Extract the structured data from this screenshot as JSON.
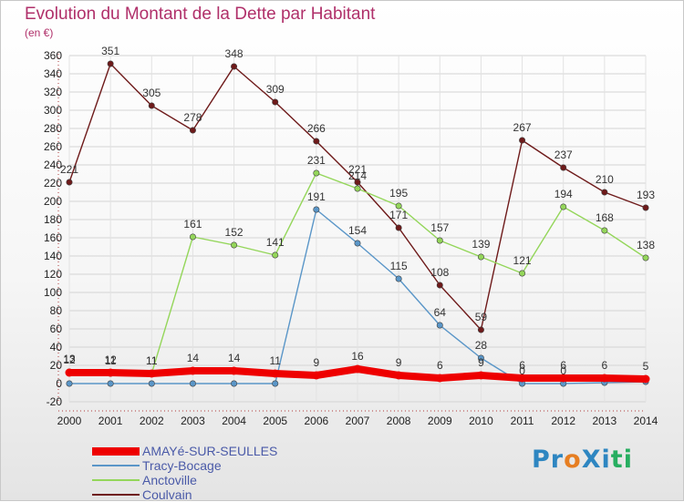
{
  "title": "Evolution du Montant de la Dette par Habitant",
  "subtitle": "(en €)",
  "logo": {
    "text": "ProXiti",
    "letters": [
      "P",
      "r",
      "o",
      "X",
      "i",
      "t",
      "i"
    ],
    "colors": [
      "#2e86c1",
      "#2e86c1",
      "#e67e22",
      "#2e86c1",
      "#2e86c1",
      "#27ae60",
      "#27ae60"
    ]
  },
  "chart_data": {
    "type": "line",
    "title": "Evolution du Montant de la Dette par Habitant",
    "ylabel": "(en €)",
    "xlabel": "",
    "x": [
      "2000",
      "2001",
      "2002",
      "2003",
      "2004",
      "2005",
      "2006",
      "2007",
      "2008",
      "2009",
      "2010",
      "2011",
      "2012",
      "2013",
      "2014"
    ],
    "ylim": [
      -20,
      360
    ],
    "yticks": [
      -20,
      0,
      20,
      40,
      60,
      80,
      100,
      120,
      140,
      160,
      180,
      200,
      220,
      240,
      260,
      280,
      300,
      320,
      340,
      360
    ],
    "grid": true,
    "legend_position": "bottom-left",
    "series": [
      {
        "name": "Coulvain",
        "color": "#6e1a1a",
        "values": [
          221,
          351,
          305,
          278,
          348,
          309,
          266,
          221,
          171,
          108,
          59,
          267,
          237,
          210,
          193
        ],
        "labels": [
          "221",
          "351",
          "305",
          "278",
          "348",
          "309",
          "266",
          "221",
          "171",
          "108",
          "59",
          "267",
          "237",
          "210",
          "193"
        ]
      },
      {
        "name": "Anctoville",
        "color": "#94d65a",
        "values": [
          13,
          11,
          11,
          161,
          152,
          141,
          231,
          214,
          195,
          157,
          139,
          121,
          194,
          168,
          138
        ],
        "labels": [
          "13",
          "11",
          "11",
          "161",
          "152",
          "141",
          "231",
          "214",
          "195",
          "157",
          "139",
          "121",
          "194",
          "168",
          "138"
        ]
      },
      {
        "name": "Tracy-Bocage",
        "color": "#5a96c8",
        "values": [
          0,
          0,
          0,
          0,
          0,
          0,
          191,
          154,
          115,
          64,
          28,
          0,
          0,
          1,
          2
        ],
        "labels": [
          "",
          "",
          "",
          "",
          "",
          "",
          "191",
          "154",
          "115",
          "64",
          "28",
          "0",
          "0",
          "",
          ""
        ]
      },
      {
        "name": "AMAYé-SUR-SEULLES",
        "color": "#ee0000",
        "values": [
          12,
          12,
          11,
          14,
          14,
          11,
          9,
          16,
          9,
          6,
          9,
          6,
          6,
          6,
          5
        ],
        "labels": [
          "12",
          "12",
          "11",
          "14",
          "14",
          "11",
          "9",
          "16",
          "9",
          "6",
          "9",
          "6",
          "6",
          "6",
          "5"
        ]
      }
    ]
  },
  "legend": [
    {
      "name": "AMAYé-SUR-SEULLES",
      "color": "#ee0000",
      "thickness": 9
    },
    {
      "name": "Tracy-Bocage",
      "color": "#5a96c8",
      "thickness": 2
    },
    {
      "name": "Anctoville",
      "color": "#94d65a",
      "thickness": 2
    },
    {
      "name": "Coulvain",
      "color": "#6e1a1a",
      "thickness": 2
    }
  ]
}
